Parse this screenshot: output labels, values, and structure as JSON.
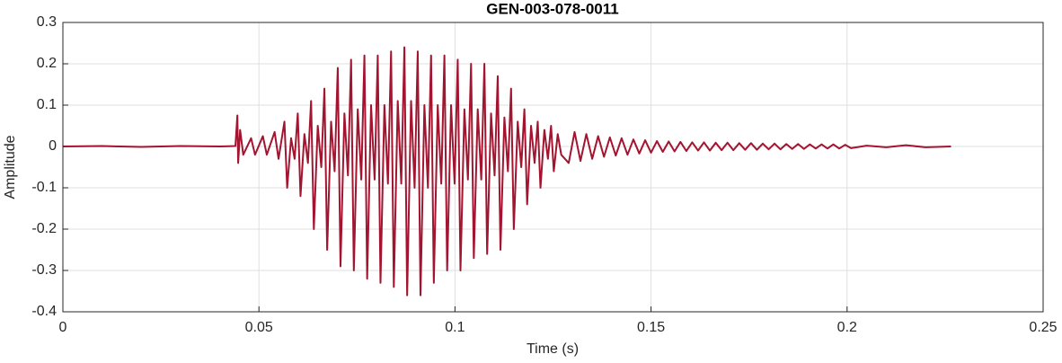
{
  "chart_data": {
    "type": "line",
    "title": "GEN-003-078-0011",
    "xlabel": "Time (s)",
    "ylabel": "Amplitude",
    "color": "#a2142f",
    "grid": true,
    "xlim": [
      0,
      0.25
    ],
    "ylim": [
      -0.4,
      0.3
    ],
    "xticks": [
      0,
      0.05,
      0.1,
      0.15,
      0.2,
      0.25
    ],
    "yticks": [
      -0.4,
      -0.3,
      -0.2,
      -0.1,
      0,
      0.1,
      0.2,
      0.3
    ],
    "x": [
      0,
      0.01,
      0.02,
      0.03,
      0.04,
      0.044,
      0.0445,
      0.0447,
      0.0452,
      0.046,
      0.048,
      0.049,
      0.051,
      0.052,
      0.054,
      0.055,
      0.0565,
      0.0572,
      0.0582,
      0.0591,
      0.0599,
      0.0606,
      0.0616,
      0.0625,
      0.0633,
      0.064,
      0.065,
      0.0659,
      0.0667,
      0.0674,
      0.0684,
      0.0693,
      0.0701,
      0.0708,
      0.0718,
      0.0727,
      0.0735,
      0.0742,
      0.0752,
      0.0761,
      0.0769,
      0.0776,
      0.0786,
      0.0795,
      0.0803,
      0.081,
      0.082,
      0.0829,
      0.0837,
      0.0844,
      0.0854,
      0.0863,
      0.0871,
      0.0878,
      0.0888,
      0.0897,
      0.0905,
      0.0912,
      0.0922,
      0.0931,
      0.0939,
      0.0946,
      0.0956,
      0.0965,
      0.0973,
      0.098,
      0.099,
      0.0999,
      0.1007,
      0.1014,
      0.1024,
      0.1033,
      0.1041,
      0.1048,
      0.1058,
      0.1067,
      0.1075,
      0.1082,
      0.1092,
      0.1101,
      0.1109,
      0.1116,
      0.1126,
      0.1135,
      0.1143,
      0.115,
      0.116,
      0.1169,
      0.1177,
      0.1184,
      0.1194,
      0.1203,
      0.1211,
      0.1218,
      0.1228,
      0.1237,
      0.1245,
      0.1252,
      0.1262,
      0.1271,
      0.129,
      0.1305,
      0.132,
      0.1335,
      0.135,
      0.1365,
      0.138,
      0.1395,
      0.141,
      0.1425,
      0.144,
      0.1455,
      0.147,
      0.1485,
      0.15,
      0.1515,
      0.153,
      0.1545,
      0.156,
      0.1575,
      0.159,
      0.1605,
      0.162,
      0.1635,
      0.165,
      0.1665,
      0.168,
      0.1695,
      0.171,
      0.1725,
      0.174,
      0.1755,
      0.177,
      0.1785,
      0.18,
      0.1815,
      0.183,
      0.1845,
      0.186,
      0.1875,
      0.189,
      0.1905,
      0.192,
      0.1935,
      0.195,
      0.1965,
      0.198,
      0.1995,
      0.201,
      0.205,
      0.21,
      0.215,
      0.22,
      0.2265
    ],
    "values": [
      0,
      0.001,
      -0.001,
      0.001,
      0,
      0.001,
      0.075,
      -0.04,
      0.04,
      -0.02,
      0.02,
      -0.02,
      0.025,
      -0.02,
      0.035,
      -0.03,
      0.06,
      -0.1,
      0.02,
      -0.03,
      0.08,
      -0.12,
      0.03,
      -0.04,
      0.11,
      -0.2,
      0.05,
      -0.05,
      0.14,
      -0.25,
      0.06,
      -0.06,
      0.19,
      -0.29,
      0.08,
      -0.07,
      0.21,
      -0.3,
      0.09,
      -0.08,
      0.22,
      -0.32,
      0.1,
      -0.08,
      0.22,
      -0.33,
      0.1,
      -0.09,
      0.23,
      -0.34,
      0.11,
      -0.09,
      0.24,
      -0.36,
      0.11,
      -0.1,
      0.23,
      -0.36,
      0.1,
      -0.1,
      0.22,
      -0.33,
      0.1,
      -0.09,
      0.22,
      -0.3,
      0.1,
      -0.09,
      0.21,
      -0.3,
      0.09,
      -0.08,
      0.2,
      -0.27,
      0.09,
      -0.08,
      0.2,
      -0.26,
      0.08,
      -0.07,
      0.17,
      -0.25,
      0.07,
      -0.06,
      0.14,
      -0.2,
      0.06,
      -0.05,
      0.09,
      -0.14,
      0.05,
      -0.04,
      0.06,
      -0.1,
      0.04,
      -0.03,
      0.05,
      -0.06,
      0.03,
      -0.02,
      -0.04,
      0.035,
      -0.035,
      0.03,
      -0.03,
      0.025,
      -0.025,
      0.022,
      -0.022,
      0.02,
      -0.02,
      0.017,
      -0.017,
      0.015,
      -0.015,
      0.013,
      -0.013,
      0.012,
      -0.012,
      0.011,
      -0.011,
      0.01,
      -0.01,
      0.01,
      -0.01,
      0.009,
      -0.009,
      0.009,
      -0.009,
      0.008,
      -0.008,
      0.008,
      -0.008,
      0.007,
      -0.007,
      0.007,
      -0.007,
      0.006,
      -0.006,
      0.006,
      -0.006,
      0.005,
      -0.005,
      0.005,
      -0.005,
      0.005,
      -0.005,
      0.004,
      -0.004,
      0.002,
      -0.002,
      0.003,
      -0.002,
      0
    ]
  }
}
